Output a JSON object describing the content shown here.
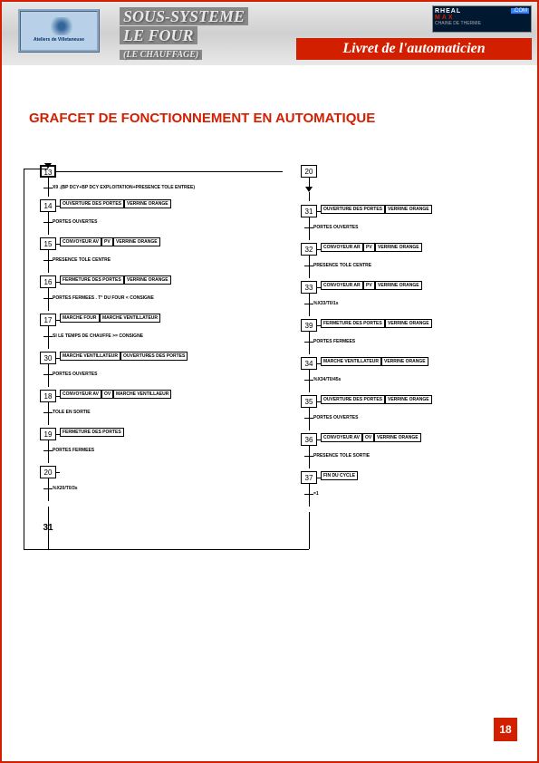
{
  "colors": {
    "red": "#d21f00",
    "headerGrey": "#d0d0d0",
    "logoBlue": "#b8d0e8"
  },
  "header": {
    "logo_caption": "Ateliers de Villetaneuse",
    "line1": "SOUS-SYSTEME",
    "line2": "LE FOUR",
    "line3": "(LE CHAUFFAGE)",
    "brand_line1a": "RHEAL",
    "brand_line1b": "MAX",
    "brand_com": ".COM",
    "brand_line2": "CHAINE DE THERMIE",
    "livret": "Livret de l'automaticien"
  },
  "title": "GRAFCET DE FONCTIONNEMENT EN AUTOMATIQUE",
  "page_number": "18",
  "end_step": "31",
  "left": {
    "start_step": "13",
    "start_trans": "X9 .(BP DCY+BP DCY EXPLOITATION+PRESENCE TOLE ENTREE)",
    "steps": [
      {
        "n": "14",
        "a1": "OUVERTURE DES PORTES",
        "a2": "VERRINE ORANGE",
        "t": "PORTES OUVERTES"
      },
      {
        "n": "15",
        "a1": "CONVOYEUR AV",
        "a2": "PV",
        "a3": "VERRINE ORANGE",
        "t": "PRESENCE TOLE CENTRE"
      },
      {
        "n": "16",
        "a1": "FERMETURE DES PORTES",
        "a2": "VERRINE ORANGE",
        "t": "PORTES FERMEES . T° DU FOUR < CONSIGNE"
      },
      {
        "n": "17",
        "a1": "MARCHE FOUR",
        "a2": "MARCHE VENTILLATEUR",
        "t": "SI LE TEMPS DE CHAUFFE >= CONSIGNE"
      },
      {
        "n": "30",
        "a1": "MARCHE VENTILLATEUR",
        "a2": "OUVERTURES DES PORTES",
        "t": "PORTES OUVERTES"
      },
      {
        "n": "18",
        "a1": "CONVOYEUR AV",
        "a2": "OV",
        "a3": "MARCHE VENTILLAEUR",
        "t": "TOLE EN SORTIE"
      },
      {
        "n": "19",
        "a1": "FERMETURE DES PORTES",
        "a2": "",
        "t": "PORTES FERMEES"
      },
      {
        "n": "20",
        "a1": "",
        "a2": "",
        "t": "%X20/T0/3s"
      }
    ]
  },
  "right": {
    "start_step": "20",
    "steps": [
      {
        "n": "31",
        "a1": "OUVERTURE DES PORTES",
        "a2": "VERRINE ORANGE",
        "t": "PORTES OUVERTES"
      },
      {
        "n": "32",
        "a1": "CONVOYEUR AR",
        "a2": "PV",
        "a3": "VERRINE ORANGE",
        "t": "PRESENCE TOLE CENTRE"
      },
      {
        "n": "33",
        "a1": "CONVOYEUR AR",
        "a2": "PV",
        "a3": "VERRINE ORANGE",
        "t": "%X33/T0/1s"
      },
      {
        "n": "39",
        "a1": "FERMETURE DES PORTES",
        "a2": "VERRINE ORANGE",
        "t": "PORTES FERMEES"
      },
      {
        "n": "34",
        "a1": "MARCHE VENTILLATEUR",
        "a2": "VERRINE ORANGE",
        "t": "%X34/T0/45s"
      },
      {
        "n": "35",
        "a1": "OUVERTURE DES PORTES",
        "a2": "VERRINE ORANGE",
        "t": "PORTES OUVERTES"
      },
      {
        "n": "36",
        "a1": "CONVOYEUR AV",
        "a2": "OV",
        "a3": "VERRINE ORANGE",
        "t": "PRESENCE TOLE SORTIE"
      },
      {
        "n": "37",
        "a1": "FIN DU CYCLE",
        "a2": "",
        "t": "=1"
      }
    ]
  }
}
